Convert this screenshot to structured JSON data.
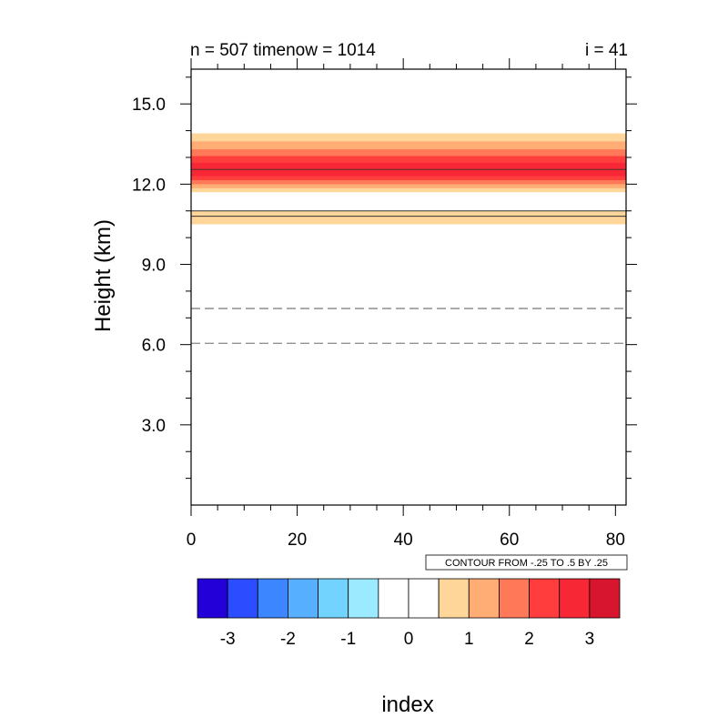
{
  "chart_data": {
    "type": "heatmap",
    "title_left": "n = 507 timenow = 1014",
    "title_right": "i = 41",
    "xlabel": "index",
    "ylabel": "Height (km)",
    "xlim": [
      0,
      82
    ],
    "ylim": [
      0,
      16.3
    ],
    "xticks": [
      0,
      20,
      40,
      60,
      80
    ],
    "xtick_labels": [
      "0",
      "20",
      "40",
      "60",
      "80"
    ],
    "yticks": [
      3,
      6,
      9,
      12,
      15
    ],
    "ytick_labels": [
      "3.0",
      "6.0",
      "9.0",
      "12.0",
      "15.0"
    ],
    "contour_info": "CONTOUR FROM -.25 TO .5 BY .25",
    "bands": [
      {
        "y0": 11.7,
        "y1": 13.9,
        "level": 1.0
      },
      {
        "y0": 11.85,
        "y1": 13.6,
        "level": 1.5
      },
      {
        "y0": 12.0,
        "y1": 13.3,
        "level": 2.0
      },
      {
        "y0": 12.15,
        "y1": 13.05,
        "level": 2.5
      },
      {
        "y0": 12.3,
        "y1": 12.8,
        "level": 3.0
      },
      {
        "y0": 10.5,
        "y1": 11.0,
        "level": 1.0
      }
    ],
    "contour_lines": [
      {
        "y": 12.55,
        "style": "solid"
      },
      {
        "y": 11.0,
        "style": "solid"
      },
      {
        "y": 10.8,
        "style": "solid"
      },
      {
        "y": 7.35,
        "style": "dashed"
      },
      {
        "y": 6.05,
        "style": "dashed"
      }
    ],
    "colorbar": {
      "colors": [
        "#2400d8",
        "#2b4cff",
        "#3c87ff",
        "#56b0ff",
        "#73d3ff",
        "#9ceaff",
        "#ffffff",
        "#ffffff",
        "#ffd699",
        "#ffac75",
        "#ff7858",
        "#ff3d3d",
        "#f72735",
        "#d8152f"
      ],
      "labels": [
        "-3",
        "-2",
        "-1",
        "0",
        "1",
        "2",
        "3"
      ],
      "label_after_box": [
        1,
        3,
        5,
        7,
        9,
        11,
        13
      ]
    }
  }
}
